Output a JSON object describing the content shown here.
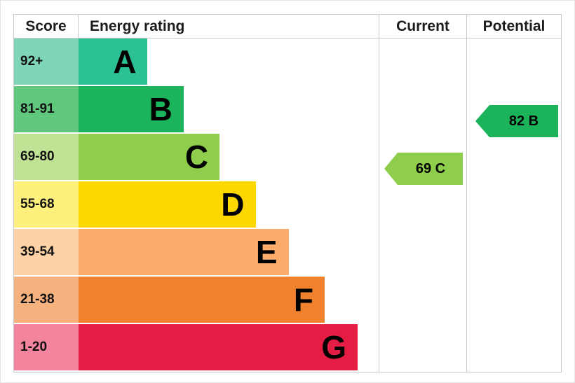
{
  "header": {
    "score": "Score",
    "energy_rating": "Energy rating",
    "current": "Current",
    "potential": "Potential"
  },
  "chart_data": {
    "type": "bar",
    "title": "Energy rating",
    "description": "Energy efficiency rating chart with score bands A-G and current/potential indicators",
    "bands": [
      {
        "score": "92+",
        "letter": "A",
        "bar_color": "#2cc194",
        "score_color": "#7fd6b6",
        "width_pct": 23
      },
      {
        "score": "81-91",
        "letter": "B",
        "bar_color": "#1cb45a",
        "score_color": "#5fc87c",
        "width_pct": 35
      },
      {
        "score": "69-80",
        "letter": "C",
        "bar_color": "#8ece4c",
        "score_color": "#bfe294",
        "width_pct": 47
      },
      {
        "score": "55-68",
        "letter": "D",
        "bar_color": "#ffd800",
        "score_color": "#fdf07d",
        "width_pct": 59
      },
      {
        "score": "39-54",
        "letter": "E",
        "bar_color": "#fcab6a",
        "score_color": "#fdd2a6",
        "width_pct": 70
      },
      {
        "score": "21-38",
        "letter": "F",
        "bar_color": "#f0812e",
        "score_color": "#f6b27e",
        "width_pct": 82
      },
      {
        "score": "1-20",
        "letter": "G",
        "bar_color": "#e51d44",
        "score_color": "#f2849e",
        "width_pct": 93
      }
    ],
    "current": {
      "label": "69 C",
      "value": 69,
      "letter": "C",
      "band_index": 2,
      "color": "#8ece4c"
    },
    "potential": {
      "label": "82 B",
      "value": 82,
      "letter": "B",
      "band_index": 1,
      "color": "#1cb45a"
    },
    "grid_color": "#c9c9c9"
  }
}
